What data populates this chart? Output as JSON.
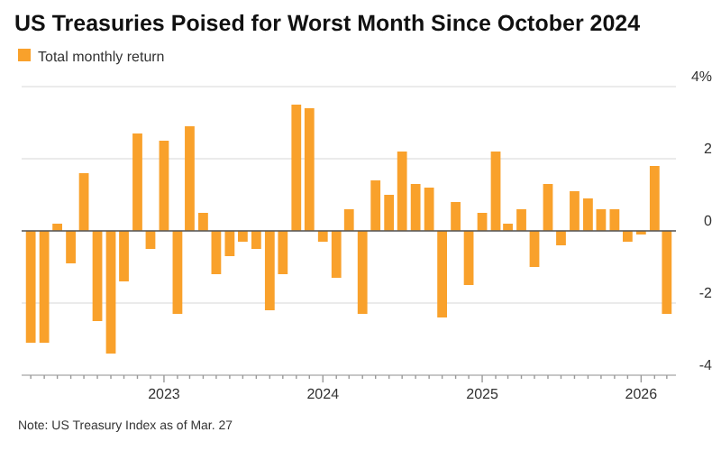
{
  "chart_data": {
    "type": "bar",
    "title": "US Treasuries Poised for Worst Month Since October 2024",
    "x": [
      "2022-03",
      "2022-04",
      "2022-05",
      "2022-06",
      "2022-07",
      "2022-08",
      "2022-09",
      "2022-10",
      "2022-11",
      "2022-12",
      "2023-01",
      "2023-02",
      "2023-03",
      "2023-04",
      "2023-05",
      "2023-06",
      "2023-07",
      "2023-08",
      "2023-09",
      "2023-10",
      "2023-11",
      "2023-12",
      "2024-01",
      "2024-02",
      "2024-03",
      "2024-04",
      "2024-05",
      "2024-06",
      "2024-07",
      "2024-08",
      "2024-09",
      "2024-10",
      "2024-11",
      "2024-12",
      "2025-01",
      "2025-02",
      "2025-03",
      "2025-04",
      "2025-05",
      "2025-06",
      "2025-07",
      "2025-08",
      "2025-09",
      "2025-10",
      "2025-11",
      "2025-12",
      "2026-01",
      "2026-02",
      "2026-03"
    ],
    "series": [
      {
        "name": "Total monthly return",
        "color": "#f9a12b",
        "values": [
          -3.1,
          -3.1,
          0.2,
          -0.9,
          1.6,
          -2.5,
          -3.4,
          -1.4,
          2.7,
          -0.5,
          2.5,
          -2.3,
          2.9,
          0.5,
          -1.2,
          -0.7,
          -0.3,
          -0.5,
          -2.2,
          -1.2,
          3.5,
          3.4,
          -0.3,
          -1.3,
          0.6,
          -2.3,
          1.4,
          1.0,
          2.2,
          1.3,
          1.2,
          -2.4,
          0.8,
          -1.5,
          0.5,
          2.2,
          0.2,
          0.6,
          -1.0,
          1.3,
          -0.4,
          1.1,
          0.9,
          0.6,
          0.6,
          -0.3,
          -0.1,
          1.8,
          -2.3
        ]
      }
    ],
    "xlim": [
      "2022-02-08",
      "2026-03-22"
    ],
    "xticks": [
      {
        "value": "2022-03",
        "label": null
      },
      {
        "value": "2022-04",
        "label": null
      },
      {
        "value": "2022-05",
        "label": null
      },
      {
        "value": "2022-06",
        "label": null
      },
      {
        "value": "2022-07",
        "label": null
      },
      {
        "value": "2022-08",
        "label": null
      },
      {
        "value": "2022-09",
        "label": null
      },
      {
        "value": "2022-10",
        "label": null
      },
      {
        "value": "2022-11",
        "label": null
      },
      {
        "value": "2022-12",
        "label": null
      },
      {
        "value": "2023-01",
        "label": "2023"
      },
      {
        "value": "2023-02",
        "label": null
      },
      {
        "value": "2023-03",
        "label": null
      },
      {
        "value": "2023-04",
        "label": null
      },
      {
        "value": "2023-05",
        "label": null
      },
      {
        "value": "2023-06",
        "label": null
      },
      {
        "value": "2023-07",
        "label": null
      },
      {
        "value": "2023-08",
        "label": null
      },
      {
        "value": "2023-09",
        "label": null
      },
      {
        "value": "2023-10",
        "label": null
      },
      {
        "value": "2023-11",
        "label": null
      },
      {
        "value": "2023-12",
        "label": null
      },
      {
        "value": "2024-01",
        "label": "2024"
      },
      {
        "value": "2024-02",
        "label": null
      },
      {
        "value": "2024-03",
        "label": null
      },
      {
        "value": "2024-04",
        "label": null
      },
      {
        "value": "2024-05",
        "label": null
      },
      {
        "value": "2024-06",
        "label": null
      },
      {
        "value": "2024-07",
        "label": null
      },
      {
        "value": "2024-08",
        "label": null
      },
      {
        "value": "2024-09",
        "label": null
      },
      {
        "value": "2024-10",
        "label": null
      },
      {
        "value": "2024-11",
        "label": null
      },
      {
        "value": "2024-12",
        "label": null
      },
      {
        "value": "2025-01",
        "label": "2025"
      },
      {
        "value": "2025-02",
        "label": null
      },
      {
        "value": "2025-03",
        "label": null
      },
      {
        "value": "2025-04",
        "label": null
      },
      {
        "value": "2025-05",
        "label": null
      },
      {
        "value": "2025-06",
        "label": null
      },
      {
        "value": "2025-07",
        "label": null
      },
      {
        "value": "2025-08",
        "label": null
      },
      {
        "value": "2025-09",
        "label": null
      },
      {
        "value": "2025-10",
        "label": null
      },
      {
        "value": "2025-11",
        "label": null
      },
      {
        "value": "2025-12",
        "label": null
      },
      {
        "value": "2026-01",
        "label": "2026"
      },
      {
        "value": "2026-02",
        "label": null
      },
      {
        "value": "2026-03",
        "label": null
      }
    ],
    "ylim": [
      -4,
      4
    ],
    "yticks": [
      {
        "value": 4,
        "label": "4%"
      },
      2,
      0,
      -2,
      -4
    ],
    "grid": "y",
    "legend": "top left",
    "annotations": [
      "Note: US Treasury Index as of Mar. 27"
    ]
  }
}
